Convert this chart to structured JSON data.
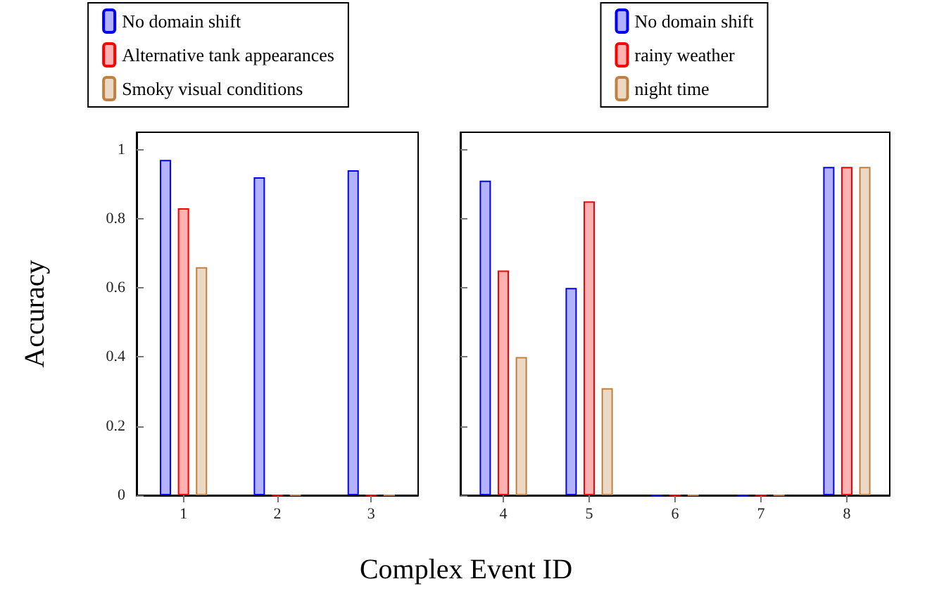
{
  "chart_data": [
    {
      "type": "bar",
      "ylabel": "Accuracy",
      "xlabel": "Complex Event ID",
      "categories": [
        "1",
        "2",
        "3"
      ],
      "series": [
        {
          "name": "No domain shift",
          "color": "#0000ff",
          "values": [
            0.97,
            0.92,
            0.94
          ]
        },
        {
          "name": "Alternative tank appearances",
          "color": "#ff0000",
          "values": [
            0.83,
            0,
            0
          ]
        },
        {
          "name": "Smoky visual conditions",
          "color": "#bf8040",
          "values": [
            0.66,
            0,
            0
          ]
        }
      ],
      "ylim": [
        0,
        1.05
      ],
      "yticks": [
        0,
        0.2,
        0.4,
        0.6,
        0.8,
        1
      ],
      "grid": false,
      "legend": "top"
    },
    {
      "type": "bar",
      "categories": [
        "4",
        "5",
        "6",
        "7",
        "8"
      ],
      "series": [
        {
          "name": "No domain shift",
          "color": "#0000ff",
          "values": [
            0.91,
            0.6,
            0,
            0,
            0.95
          ]
        },
        {
          "name": "rainy weather",
          "color": "#ff0000",
          "values": [
            0.65,
            0.85,
            0,
            0,
            0.95
          ]
        },
        {
          "name": "night time",
          "color": "#bf8040",
          "values": [
            0.4,
            0.31,
            0,
            0,
            0.95
          ]
        }
      ],
      "ylim": [
        0,
        1.05
      ],
      "yticks": [
        0,
        0.2,
        0.4,
        0.6,
        0.8,
        1
      ],
      "grid": false,
      "legend": "top",
      "tick_labels": "x"
    }
  ]
}
